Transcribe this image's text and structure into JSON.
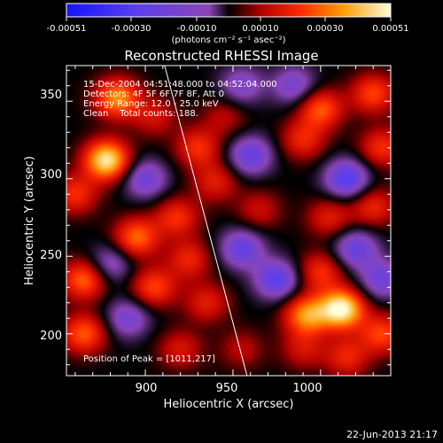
{
  "chart_data": {
    "type": "heatmap",
    "title": "Reconstructed RHESSI Image",
    "xlabel": "Heliocentric X (arcsec)",
    "ylabel": "Heliocentric Y (arcsec)",
    "xlim": [
      855,
      1040
    ],
    "ylim": [
      173,
      373
    ],
    "xticks": [
      900,
      950,
      1000
    ],
    "yticks": [
      200,
      250,
      300,
      350
    ],
    "colorbar": {
      "range": [
        -0.00051,
        0.00051
      ],
      "ticks": [
        "-0.00051",
        "-0.00030",
        "-0.00010",
        "0.00010",
        "0.00030",
        "0.00051"
      ],
      "unit_label": "(photons cm⁻² s⁻¹ asec⁻²)"
    },
    "annotations": [
      "15-Dec-2004 04:51:48.000 to 04:52:04.000",
      "Detectors: 4F 5F 6F 7F 8F, Att 0",
      "Energy Range: 12.0 - 25.0 keV",
      "Clean    Total counts: 188."
    ],
    "peak_label": "Position of Peak = [1011,217]",
    "peak": [
      1011,
      217
    ],
    "limb_line": [
      [
        911,
        373
      ],
      [
        958,
        173
      ]
    ],
    "blobs": [
      {
        "x": 878,
        "y": 312,
        "v": 0.00048
      },
      {
        "x": 884,
        "y": 352,
        "v": 0.00035
      },
      {
        "x": 905,
        "y": 340,
        "v": 0.00015
      },
      {
        "x": 930,
        "y": 320,
        "v": 0.00022
      },
      {
        "x": 945,
        "y": 340,
        "v": 0.00012
      },
      {
        "x": 1000,
        "y": 345,
        "v": 0.00028
      },
      {
        "x": 1030,
        "y": 355,
        "v": 0.00025
      },
      {
        "x": 990,
        "y": 325,
        "v": 0.0002
      },
      {
        "x": 1035,
        "y": 320,
        "v": 0.00022
      },
      {
        "x": 860,
        "y": 290,
        "v": 0.00022
      },
      {
        "x": 940,
        "y": 298,
        "v": 0.00018
      },
      {
        "x": 918,
        "y": 275,
        "v": 0.00022
      },
      {
        "x": 895,
        "y": 262,
        "v": 0.0003
      },
      {
        "x": 965,
        "y": 280,
        "v": 0.00014
      },
      {
        "x": 1005,
        "y": 275,
        "v": 0.00018
      },
      {
        "x": 1030,
        "y": 282,
        "v": 0.0002
      },
      {
        "x": 865,
        "y": 235,
        "v": 0.0003
      },
      {
        "x": 865,
        "y": 200,
        "v": 0.00028
      },
      {
        "x": 905,
        "y": 230,
        "v": 0.00025
      },
      {
        "x": 925,
        "y": 248,
        "v": 0.0002
      },
      {
        "x": 935,
        "y": 220,
        "v": 0.00018
      },
      {
        "x": 920,
        "y": 190,
        "v": 0.00016
      },
      {
        "x": 1012,
        "y": 216,
        "v": 0.00051
      },
      {
        "x": 992,
        "y": 212,
        "v": 0.00035
      },
      {
        "x": 1000,
        "y": 240,
        "v": 0.00022
      },
      {
        "x": 1035,
        "y": 200,
        "v": 0.00025
      },
      {
        "x": 1015,
        "y": 185,
        "v": 0.0002
      },
      {
        "x": 990,
        "y": 190,
        "v": 0.00015
      },
      {
        "x": 955,
        "y": 190,
        "v": 0.00012
      },
      {
        "x": 975,
        "y": 235,
        "v": -0.00028
      },
      {
        "x": 960,
        "y": 315,
        "v": -0.00025
      },
      {
        "x": 900,
        "y": 300,
        "v": -0.00022
      },
      {
        "x": 1015,
        "y": 300,
        "v": -0.0003
      },
      {
        "x": 955,
        "y": 255,
        "v": -0.00025
      },
      {
        "x": 1020,
        "y": 255,
        "v": -0.00024
      },
      {
        "x": 890,
        "y": 210,
        "v": -0.0002
      },
      {
        "x": 955,
        "y": 360,
        "v": -0.00018
      },
      {
        "x": 1035,
        "y": 235,
        "v": -0.00022
      },
      {
        "x": 880,
        "y": 245,
        "v": -0.00018
      },
      {
        "x": 985,
        "y": 360,
        "v": -0.0002
      }
    ]
  },
  "footer": {
    "timestamp": "22-Jun-2013 21:17"
  }
}
